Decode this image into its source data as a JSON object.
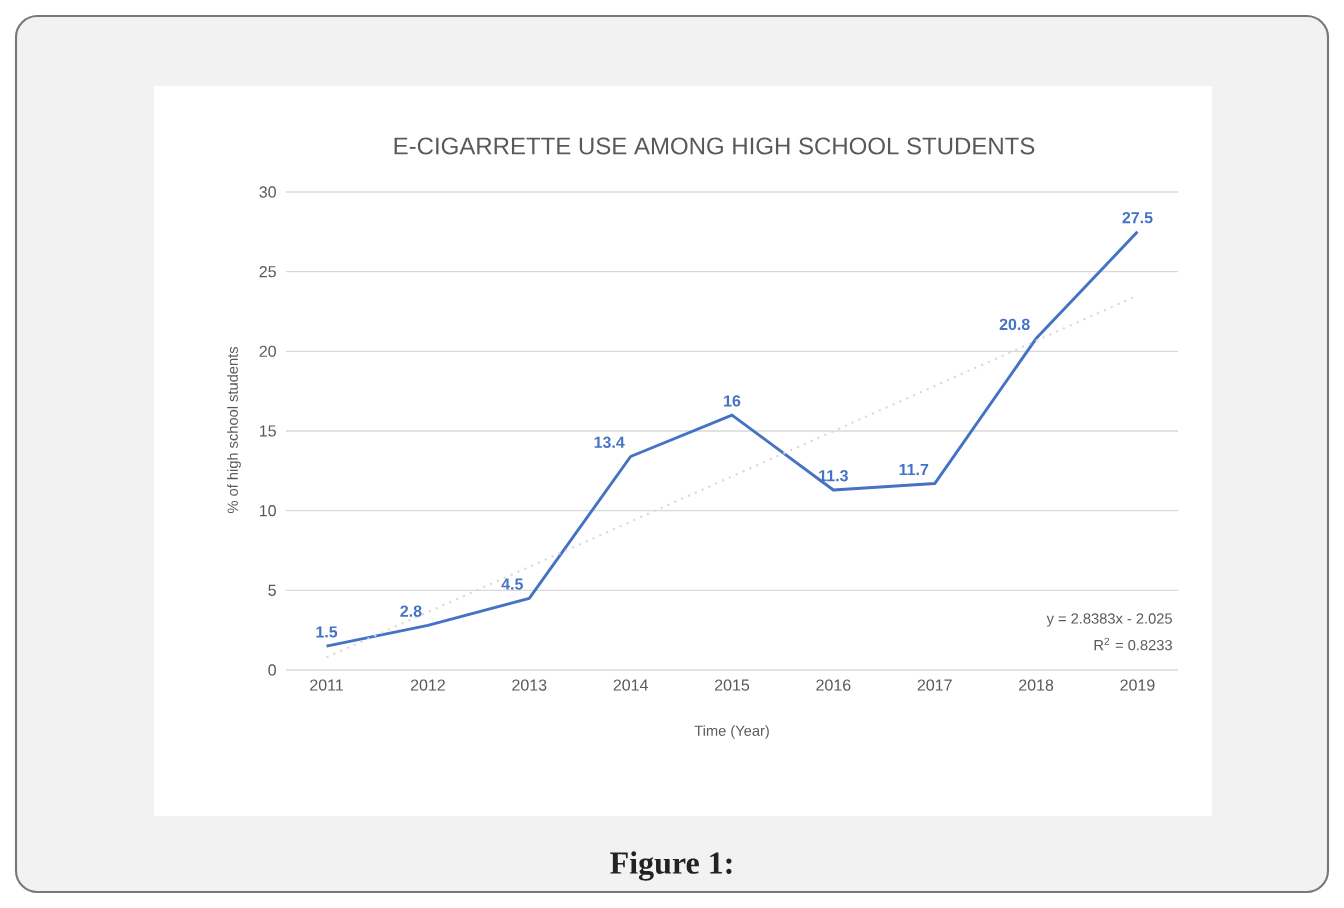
{
  "chart_data": {
    "type": "line",
    "title": "E-CIGARRETTE USE AMONG HIGH SCHOOL STUDENTS",
    "xlabel": "Time (Year)",
    "ylabel": "% of high school students",
    "x": [
      2011,
      2012,
      2013,
      2014,
      2015,
      2016,
      2017,
      2018,
      2019
    ],
    "series": [
      {
        "color": "#4472c4",
        "values": [
          1.5,
          2.8,
          4.5,
          13.4,
          16,
          11.3,
          11.7,
          20.8,
          27.5
        ],
        "value_labels": [
          "1.5",
          "2.8",
          "4.5",
          "13.4",
          "16",
          "11.3",
          "11.7",
          "20.8",
          "27.5"
        ]
      },
      {
        "type": "line",
        "x": [
          2011,
          2019
        ],
        "values": [
          0.8,
          23.5
        ],
        "color": "#d9d9d9",
        "line_style": "dotted"
      }
    ],
    "xlim": [
      2010.6,
      2019.4
    ],
    "xticks": [
      2011,
      2012,
      2013,
      2014,
      2015,
      2016,
      2017,
      2018,
      2019
    ],
    "ylim": [
      0,
      30
    ],
    "yticks": [
      0,
      5,
      10,
      15,
      20,
      25,
      30
    ],
    "grid": "y",
    "marker": "none",
    "annotations": [
      "y = 2.8383x - 2.025",
      "R$^{2}$ = 0.8233",
      "Figure 1:"
    ]
  }
}
